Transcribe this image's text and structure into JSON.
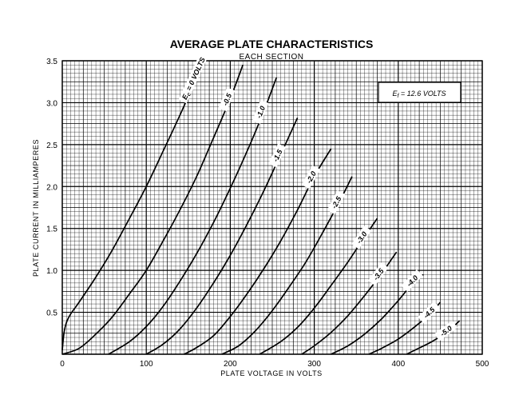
{
  "chart_data": {
    "type": "line",
    "title": "AVERAGE PLATE CHARACTERISTICS",
    "subtitle": "EACH SECTION",
    "xlabel": "PLATE VOLTAGE IN VOLTS",
    "ylabel": "PLATE CURRENT IN MILLIAMPERES",
    "xlim": [
      0,
      500
    ],
    "ylim": [
      0,
      3.5
    ],
    "x_ticks": [
      "0",
      "100",
      "200",
      "300",
      "400",
      "500"
    ],
    "y_ticks": [
      "0.5",
      "1.0",
      "1.5",
      "2.0",
      "2.5",
      "3.0",
      "3.5"
    ],
    "grid": true,
    "annotation": {
      "main": "E",
      "sub": "f",
      "rest": " = 12.6 VOLTS"
    },
    "first_label_prefix": {
      "main": "E",
      "sub": "c"
    },
    "series": [
      {
        "name": "0 VOLTS",
        "label": "= 0 VOLTS",
        "points": [
          [
            0,
            0.05
          ],
          [
            2,
            0.25
          ],
          [
            5,
            0.38
          ],
          [
            10,
            0.48
          ],
          [
            20,
            0.62
          ],
          [
            40,
            0.92
          ],
          [
            60,
            1.25
          ],
          [
            80,
            1.62
          ],
          [
            100,
            2.0
          ],
          [
            120,
            2.42
          ],
          [
            140,
            2.85
          ],
          [
            160,
            3.3
          ],
          [
            170,
            3.5
          ]
        ]
      },
      {
        "name": "-0.5",
        "label": "-0.5",
        "points": [
          [
            0,
            0
          ],
          [
            20,
            0.07
          ],
          [
            40,
            0.24
          ],
          [
            60,
            0.45
          ],
          [
            80,
            0.72
          ],
          [
            100,
            1.0
          ],
          [
            120,
            1.35
          ],
          [
            140,
            1.72
          ],
          [
            160,
            2.12
          ],
          [
            180,
            2.58
          ],
          [
            200,
            3.05
          ],
          [
            215,
            3.45
          ]
        ]
      },
      {
        "name": "-1.0",
        "label": "-1.0",
        "points": [
          [
            55,
            0
          ],
          [
            80,
            0.15
          ],
          [
            100,
            0.33
          ],
          [
            120,
            0.57
          ],
          [
            140,
            0.87
          ],
          [
            160,
            1.2
          ],
          [
            180,
            1.57
          ],
          [
            200,
            1.98
          ],
          [
            220,
            2.42
          ],
          [
            240,
            2.9
          ],
          [
            255,
            3.3
          ]
        ]
      },
      {
        "name": "-1.5",
        "label": "-1.5",
        "points": [
          [
            100,
            0
          ],
          [
            120,
            0.12
          ],
          [
            140,
            0.3
          ],
          [
            160,
            0.55
          ],
          [
            180,
            0.85
          ],
          [
            200,
            1.18
          ],
          [
            220,
            1.55
          ],
          [
            240,
            1.95
          ],
          [
            260,
            2.38
          ],
          [
            280,
            2.82
          ]
        ]
      },
      {
        "name": "-2.0",
        "label": "-2.0",
        "points": [
          [
            145,
            0
          ],
          [
            160,
            0.08
          ],
          [
            180,
            0.22
          ],
          [
            200,
            0.45
          ],
          [
            220,
            0.72
          ],
          [
            240,
            1.02
          ],
          [
            260,
            1.35
          ],
          [
            280,
            1.72
          ],
          [
            300,
            2.12
          ],
          [
            320,
            2.45
          ]
        ]
      },
      {
        "name": "-2.5",
        "label": "-2.5",
        "points": [
          [
            190,
            0
          ],
          [
            210,
            0.1
          ],
          [
            230,
            0.28
          ],
          [
            250,
            0.52
          ],
          [
            270,
            0.8
          ],
          [
            290,
            1.1
          ],
          [
            310,
            1.45
          ],
          [
            330,
            1.82
          ],
          [
            345,
            2.12
          ]
        ]
      },
      {
        "name": "-3.0",
        "label": "-3.0",
        "points": [
          [
            235,
            0
          ],
          [
            260,
            0.15
          ],
          [
            280,
            0.32
          ],
          [
            300,
            0.55
          ],
          [
            320,
            0.82
          ],
          [
            340,
            1.1
          ],
          [
            360,
            1.4
          ],
          [
            375,
            1.62
          ]
        ]
      },
      {
        "name": "-3.5",
        "label": "-3.5",
        "points": [
          [
            285,
            0
          ],
          [
            300,
            0.1
          ],
          [
            320,
            0.26
          ],
          [
            340,
            0.46
          ],
          [
            360,
            0.7
          ],
          [
            380,
            0.96
          ],
          [
            398,
            1.22
          ]
        ]
      },
      {
        "name": "-4.0",
        "label": "-4.0",
        "points": [
          [
            320,
            0
          ],
          [
            340,
            0.1
          ],
          [
            360,
            0.24
          ],
          [
            380,
            0.42
          ],
          [
            400,
            0.64
          ],
          [
            420,
            0.88
          ],
          [
            430,
            0.95
          ]
        ]
      },
      {
        "name": "-4.5",
        "label": "-4.5",
        "points": [
          [
            365,
            0
          ],
          [
            380,
            0.07
          ],
          [
            400,
            0.18
          ],
          [
            420,
            0.33
          ],
          [
            440,
            0.5
          ],
          [
            450,
            0.62
          ]
        ]
      },
      {
        "name": "-5.0",
        "label": "-5.0",
        "points": [
          [
            410,
            0
          ],
          [
            420,
            0.05
          ],
          [
            440,
            0.15
          ],
          [
            460,
            0.28
          ],
          [
            473,
            0.4
          ]
        ]
      }
    ]
  }
}
